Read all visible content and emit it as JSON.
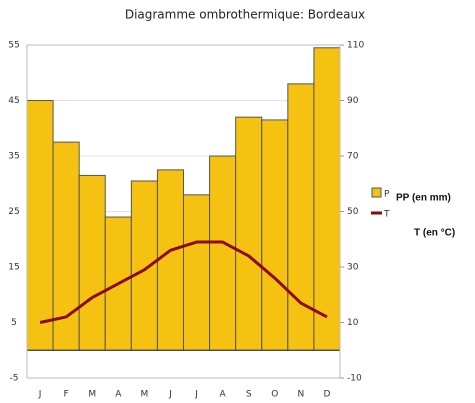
{
  "chart_data": {
    "type": "combo",
    "title": "Diagramme ombrothermique: Bordeaux",
    "categories": [
      "J",
      "F",
      "M",
      "A",
      "M",
      "J",
      "J",
      "A",
      "S",
      "O",
      "N",
      "D"
    ],
    "series": [
      {
        "name": "P",
        "type": "bar",
        "axis": "y2",
        "color": "#f5c211",
        "values": [
          90,
          75,
          63,
          48,
          61,
          65,
          56,
          70,
          84,
          83,
          96,
          109
        ]
      },
      {
        "name": "T",
        "type": "line",
        "axis": "y",
        "color": "#8b0a0a",
        "values": [
          5,
          6,
          9.5,
          12,
          14.5,
          18,
          19.5,
          19.5,
          17,
          13,
          8.5,
          6
        ]
      }
    ],
    "ylim": [
      -5,
      55
    ],
    "yticks": [
      -5,
      5,
      15,
      25,
      35,
      45,
      55
    ],
    "y2lim": [
      -10,
      110
    ],
    "y2ticks": [
      -10,
      10,
      30,
      50,
      70,
      90,
      110
    ],
    "grid": true,
    "annotations": [
      "PP (en mm)",
      "T (en °C)"
    ]
  }
}
